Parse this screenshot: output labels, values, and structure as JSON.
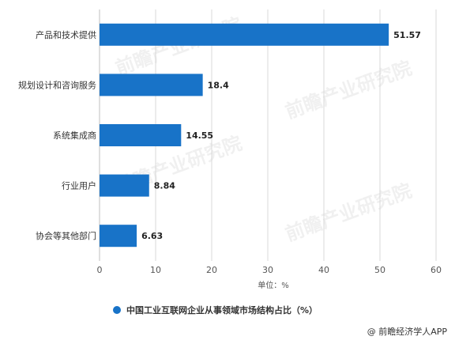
{
  "chart_data": {
    "type": "bar",
    "orientation": "horizontal",
    "categories": [
      "产品和技术提供",
      "规划设计和咨询服务",
      "系统集成商",
      "行业用户",
      "协会等其他部门"
    ],
    "series": [
      {
        "name": "中国工业互联网企业从事领域市场结构占比（%）",
        "values": [
          51.57,
          18.4,
          14.55,
          8.84,
          6.63
        ],
        "value_labels": [
          "51.57",
          "18.4",
          "14.55",
          "8.84",
          "6.63"
        ]
      }
    ],
    "xlabel": "单位：%",
    "xlim": [
      0,
      60
    ],
    "xticks": [
      "0",
      "10",
      "20",
      "30",
      "40",
      "50",
      "60"
    ],
    "grid": true,
    "legend_position": "bottom",
    "bar_color": "#1873C8",
    "grid_color": "#D9D9D9"
  },
  "watermark": "前瞻产业研究院",
  "source": "@ 前瞻经济学人APP"
}
